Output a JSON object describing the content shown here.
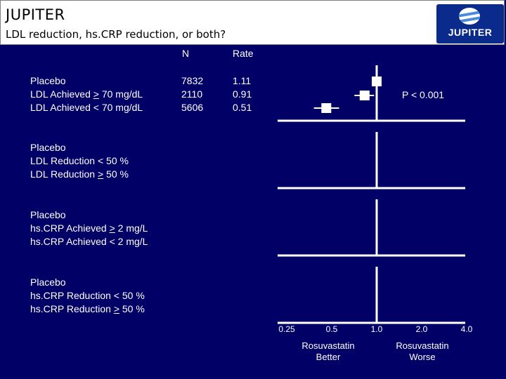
{
  "header": {
    "title": "JUPITER",
    "subtitle": "LDL reduction, hs.CRP reduction, or both?",
    "logo_text": "JUPITER"
  },
  "columns": {
    "n": "N",
    "rate": "Rate"
  },
  "groups": [
    {
      "rows": [
        {
          "pre": "Placebo",
          "op": "",
          "post": "",
          "n": "7832",
          "rate": "1.11"
        },
        {
          "pre": "LDL Achieved ",
          "op": ">",
          "post": " 70 mg/dL",
          "n": "2110",
          "rate": "0.91"
        },
        {
          "pre": "LDL Achieved < 70 mg/dL",
          "op": "",
          "post": "",
          "n": "5606",
          "rate": "0.51"
        }
      ]
    },
    {
      "rows": [
        {
          "pre": "Placebo",
          "op": "",
          "post": ""
        },
        {
          "pre": "LDL Reduction < 50 %",
          "op": "",
          "post": ""
        },
        {
          "pre": "LDL Reduction ",
          "op": ">",
          "post": " 50 %"
        }
      ]
    },
    {
      "rows": [
        {
          "pre": "Placebo",
          "op": "",
          "post": ""
        },
        {
          "pre": "hs.CRP Achieved ",
          "op": ">",
          "post": " 2 mg/L"
        },
        {
          "pre": "hs.CRP Achieved < 2 mg/L",
          "op": "",
          "post": ""
        }
      ]
    },
    {
      "rows": [
        {
          "pre": "Placebo",
          "op": "",
          "post": ""
        },
        {
          "pre": "hs.CRP Reduction < 50 %",
          "op": "",
          "post": ""
        },
        {
          "pre": "hs.CRP Reduction ",
          "op": ">",
          "post": " 50 %"
        }
      ]
    }
  ],
  "chart_data": {
    "type": "scatter",
    "scale": "log",
    "xlim": [
      0.25,
      4.0
    ],
    "x_ticks": [
      "0.25",
      "0.5",
      "1.0",
      "2.0",
      "4.0"
    ],
    "reference_line": 1.0,
    "points": [
      {
        "label": "Placebo",
        "value": 1.0,
        "ci": [
          1.0,
          1.0
        ]
      },
      {
        "label": "LDL Achieved > 70 mg/dL",
        "value": 0.83,
        "ci": [
          0.71,
          0.96
        ]
      },
      {
        "label": "LDL Achieved < 70 mg/dL",
        "value": 0.46,
        "ci": [
          0.38,
          0.56
        ]
      }
    ],
    "p_value": "P < 0.001",
    "left_label": [
      "Rosuvastatin",
      "Better"
    ],
    "right_label": [
      "Rosuvastatin",
      "Worse"
    ]
  },
  "colors": {
    "background": "#000066",
    "header": "#ffffff",
    "text": "#ffffff",
    "logo": "#0a2a8c"
  }
}
